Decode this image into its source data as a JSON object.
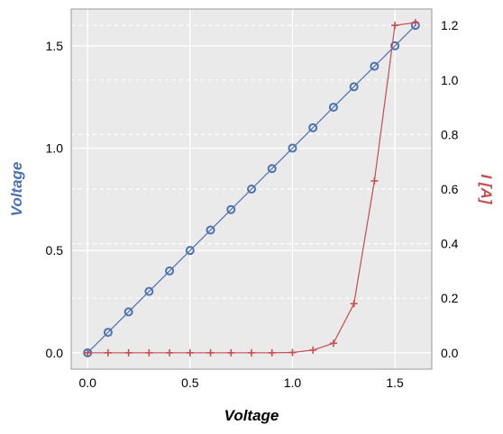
{
  "chart_data": {
    "type": "line",
    "xlabel": "Voltage",
    "ylabel_left": "Voltage",
    "ylabel_right": "I [A]",
    "xlim": [
      -0.08,
      1.68
    ],
    "ylim_left": [
      -0.08,
      1.68
    ],
    "ylim_right": [
      -0.06,
      1.26
    ],
    "grid": true,
    "x_ticks": [
      "0.0",
      "0.5",
      "1.0",
      "1.5"
    ],
    "y_left_ticks": [
      "0.0",
      "0.5",
      "1.0",
      "1.5"
    ],
    "y_right_ticks": [
      "0.0",
      "0.2",
      "0.4",
      "0.6",
      "0.8",
      "1.0",
      "1.2"
    ],
    "series": [
      {
        "axis": "left",
        "marker": "circle",
        "color": "#4c72b0",
        "x": [
          0.0,
          0.1,
          0.2,
          0.3,
          0.4,
          0.5,
          0.6,
          0.7,
          0.8,
          0.9,
          1.0,
          1.1,
          1.2,
          1.3,
          1.4,
          1.5,
          1.6
        ],
        "y": [
          0.0,
          0.1,
          0.2,
          0.3,
          0.4,
          0.5,
          0.6,
          0.7,
          0.8,
          0.9,
          1.0,
          1.1,
          1.2,
          1.3,
          1.4,
          1.5,
          1.6
        ]
      },
      {
        "axis": "right",
        "marker": "plus",
        "color": "#c44e52",
        "x": [
          0.0,
          0.1,
          0.2,
          0.3,
          0.4,
          0.5,
          0.6,
          0.7,
          0.8,
          0.9,
          1.0,
          1.1,
          1.2,
          1.3,
          1.4,
          1.5,
          1.6
        ],
        "y": [
          0.0,
          0.0,
          0.0,
          0.0,
          0.0,
          0.0,
          0.0,
          0.0,
          0.0,
          0.0,
          0.001,
          0.01,
          0.035,
          0.18,
          0.63,
          1.2,
          1.21
        ]
      }
    ],
    "colors": {
      "left_axis_label": "#4c72b0",
      "right_axis_label": "#c44e52",
      "plot_bg": "#eaeaea",
      "grid": "#ffffff"
    }
  }
}
